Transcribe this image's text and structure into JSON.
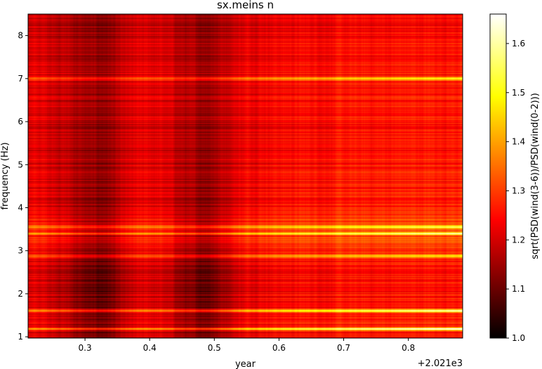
{
  "chart_data": {
    "type": "heatmap",
    "title": "sx.meins n",
    "xlabel": "year",
    "ylabel": "frequency (Hz)",
    "x_offset_text": "+2.021e3",
    "xlim": [
      0.212,
      0.884
    ],
    "ylim": [
      0.97,
      8.5
    ],
    "x_ticks": [
      0.3,
      0.4,
      0.5,
      0.6,
      0.7,
      0.8
    ],
    "x_tick_labels": [
      "0.3",
      "0.4",
      "0.5",
      "0.6",
      "0.7",
      "0.8"
    ],
    "y_ticks": [
      1,
      2,
      3,
      4,
      5,
      6,
      7,
      8
    ],
    "y_tick_labels": [
      "1",
      "2",
      "3",
      "4",
      "5",
      "6",
      "7",
      "8"
    ],
    "colormap": "hot",
    "colorbar": {
      "label": "sqrt(PSD(wind(3-6))/PSD(wind(0-2)))",
      "range": [
        1.0,
        1.66
      ],
      "ticks": [
        1.0,
        1.1,
        1.2,
        1.3,
        1.4,
        1.5,
        1.6
      ],
      "tick_labels": [
        "1.0",
        "1.1",
        "1.2",
        "1.3",
        "1.4",
        "1.5",
        "1.6"
      ]
    },
    "dark_periods_year": [
      0.32,
      0.48
    ],
    "prominent_bands_hz": [
      {
        "freq": 1.18,
        "value": 1.6
      },
      {
        "freq": 1.6,
        "value": 1.55
      },
      {
        "freq": 3.4,
        "value": 1.5
      },
      {
        "freq": 3.55,
        "value": 1.45
      },
      {
        "freq": 7.0,
        "value": 1.45
      },
      {
        "freq": 2.88,
        "value": 1.4
      }
    ]
  }
}
